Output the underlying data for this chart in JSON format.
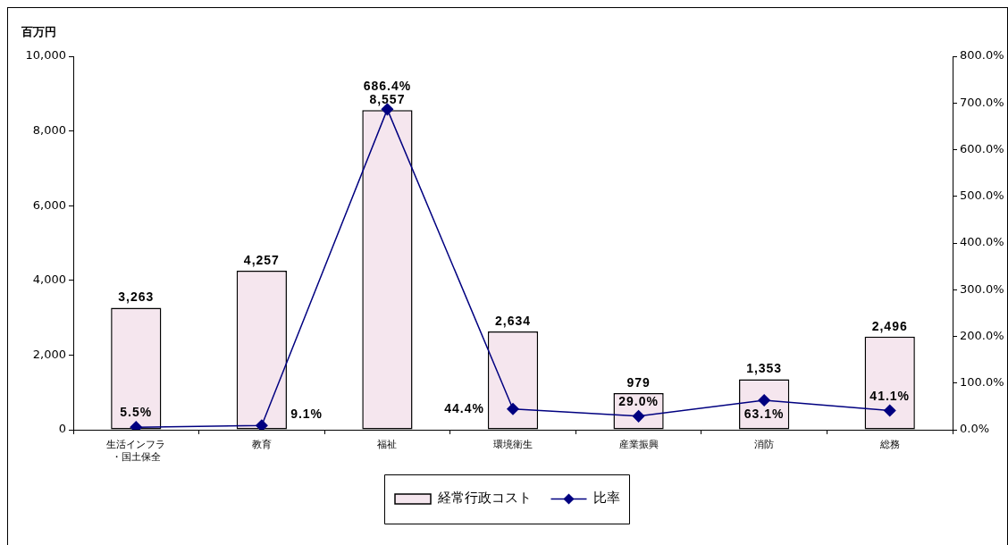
{
  "chart_data": {
    "type": "bar",
    "ylabel": "百万円",
    "categories": [
      "生活インフラ・国土保全",
      "教育",
      "福祉",
      "環境衛生",
      "産業振興",
      "消防",
      "総務"
    ],
    "series": [
      {
        "name": "経常行政コスト",
        "color": "#f5e6ee",
        "values": [
          3263,
          4257,
          8557,
          2634,
          979,
          1353,
          2496
        ],
        "value_labels": [
          "3,263",
          "4,257",
          "8,557",
          "2,634",
          "979",
          "1,353",
          "2,496"
        ]
      },
      {
        "name": "比率",
        "type": "line",
        "axis": "y2",
        "color": "#000080",
        "values": [
          5.5,
          9.1,
          686.4,
          44.4,
          29.0,
          63.1,
          41.1
        ],
        "value_labels": [
          "5.5%",
          "9.1%",
          "686.4%",
          "44.4%",
          "29.0%",
          "63.1%",
          "41.1%"
        ]
      }
    ],
    "ylim": [
      0,
      10000
    ],
    "yticks": [
      0,
      {
        "value": 2000,
        "label": "2,000"
      },
      {
        "value": 4000,
        "label": "4,000"
      },
      {
        "value": 6000,
        "label": "6,000"
      },
      {
        "value": 8000,
        "label": "8,000"
      },
      {
        "value": 10000,
        "label": "10,000"
      }
    ],
    "y2lim": [
      0,
      800
    ],
    "y2ticks": [
      {
        "value": 0,
        "label": "0.0%"
      },
      {
        "value": 100,
        "label": "100.0%"
      },
      {
        "value": 200,
        "label": "200.0%"
      },
      {
        "value": 300,
        "label": "300.0%"
      },
      {
        "value": 400,
        "label": "400.0%"
      },
      {
        "value": 500,
        "label": "500.0%"
      },
      {
        "value": 600,
        "label": "600.0%"
      },
      {
        "value": 700,
        "label": "700.0%"
      },
      {
        "value": 800,
        "label": "800.0%"
      }
    ],
    "grid": false,
    "legend": "bottom",
    "marker": "diamond",
    "line_style": "solid"
  }
}
